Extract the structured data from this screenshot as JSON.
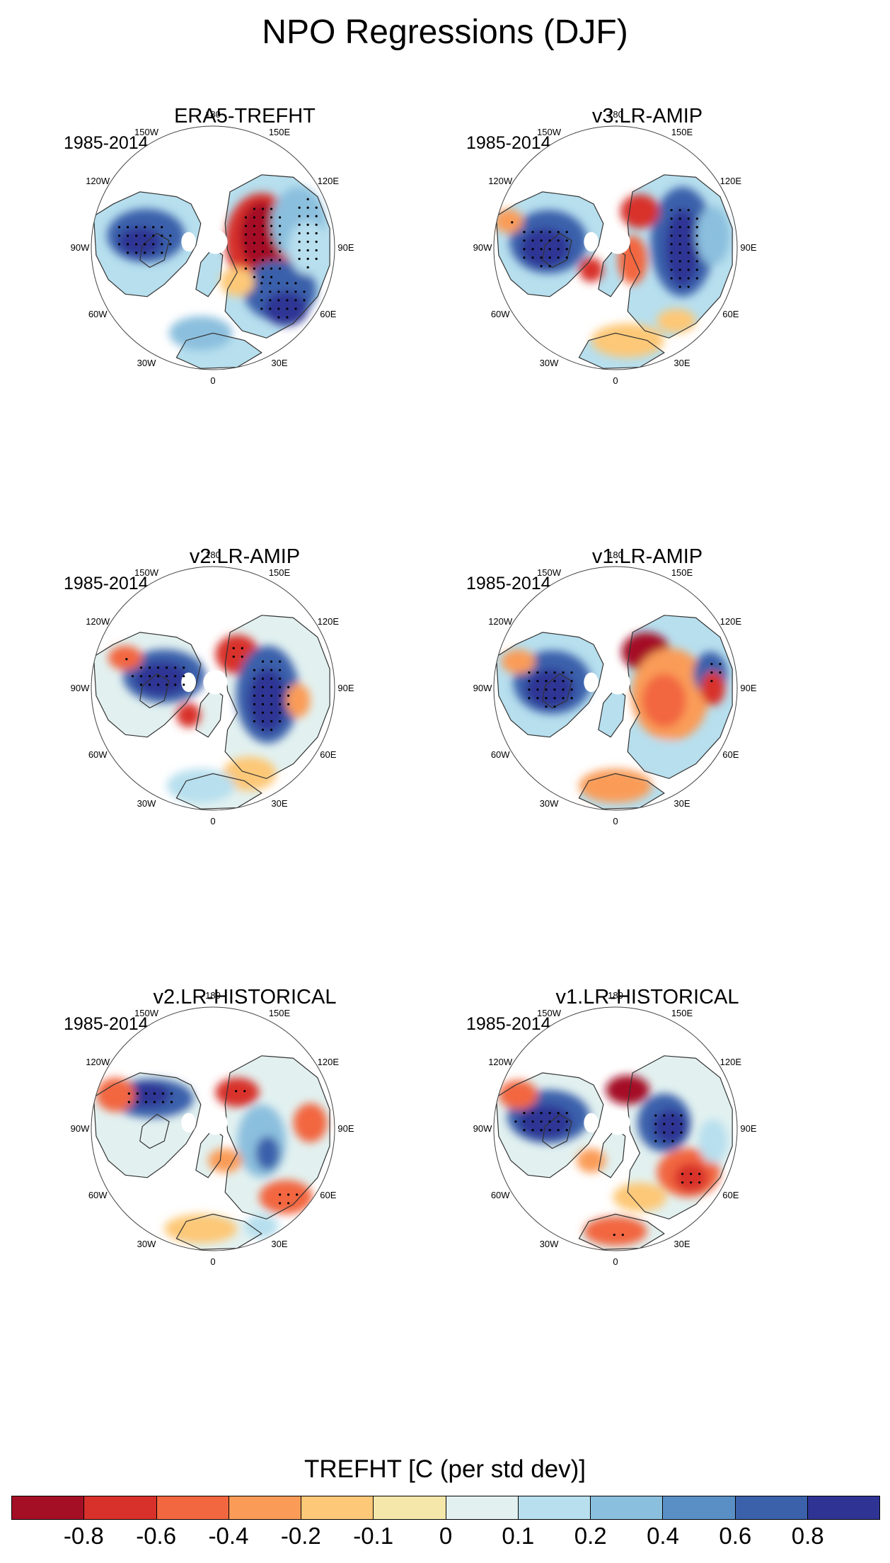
{
  "title": "NPO Regressions (DJF)",
  "period": "1985-2014",
  "lon_labels": [
    "180",
    "150E",
    "120E",
    "90E",
    "60E",
    "30E",
    "0",
    "30W",
    "60W",
    "90W",
    "120W",
    "150W"
  ],
  "panels": [
    {
      "title": "ERA5-TREFHT",
      "period": "1985-2014"
    },
    {
      "title": "v3.LR-AMIP",
      "period": "1985-2014"
    },
    {
      "title": "v2.LR-AMIP",
      "period": "1985-2014"
    },
    {
      "title": "v1.LR-AMIP",
      "period": "1985-2014"
    },
    {
      "title": "v2.LR-HISTORICAL",
      "period": "1985-2014"
    },
    {
      "title": "v1.LR-HISTORICAL",
      "period": "1985-2014"
    }
  ],
  "colorbar": {
    "title": "TREFHT [C (per std dev)]",
    "ticks": [
      "-0.8",
      "-0.6",
      "-0.4",
      "-0.2",
      "-0.1",
      "0",
      "0.1",
      "0.2",
      "0.4",
      "0.6",
      "0.8"
    ],
    "colors": [
      "#a50f25",
      "#d8302a",
      "#f26640",
      "#fa9c58",
      "#fdc877",
      "#f5e7aa",
      "#e2f1f0",
      "#b7dfee",
      "#8bbfde",
      "#5a8fc6",
      "#3b61ab",
      "#2f3494"
    ]
  }
}
